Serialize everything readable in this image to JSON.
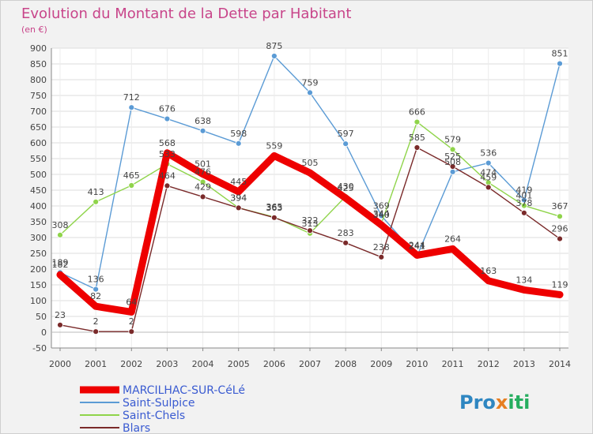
{
  "chart_data": {
    "type": "line",
    "title": "Evolution du Montant de la Dette par Habitant",
    "subtitle": "(en €)",
    "x": [
      "2000",
      "2001",
      "2002",
      "2003",
      "2004",
      "2005",
      "2006",
      "2007",
      "2008",
      "2009",
      "2010",
      "2011",
      "2012",
      "2013",
      "2014"
    ],
    "ylim": [
      -50,
      900
    ],
    "yticks": [
      -50,
      0,
      50,
      100,
      150,
      200,
      250,
      300,
      350,
      400,
      450,
      500,
      550,
      600,
      650,
      700,
      750,
      800,
      850,
      900
    ],
    "grid": true,
    "legend_position": "bottom-left",
    "series": [
      {
        "name": "MARCILHAC-SUR-CéLé",
        "color": "#ee0000",
        "values": [
          182,
          82,
          64,
          568,
          501,
          445,
          559,
          505,
          425,
          340,
          244,
          264,
          163,
          134,
          119
        ],
        "labels": [
          "182",
          "82",
          "64",
          "568",
          "501",
          "445",
          "559",
          "505",
          "425",
          "340",
          "244",
          "264",
          "163",
          "134",
          "119"
        ]
      },
      {
        "name": "Saint-Sulpice",
        "color": "#5b9bd5",
        "values": [
          189,
          136,
          712,
          676,
          638,
          598,
          875,
          759,
          597,
          369,
          241,
          508,
          536,
          419,
          851
        ],
        "labels": [
          "189",
          "136",
          "712",
          "676",
          "638",
          "598",
          "875",
          "759",
          "597",
          "369",
          "241",
          "508",
          "536",
          "419",
          "851"
        ]
      },
      {
        "name": "Saint-Chels",
        "color": "#8fd44a",
        "values": [
          308,
          413,
          465,
          533,
          476,
          394,
          365,
          313,
          430,
          344,
          666,
          579,
          474,
          401,
          367
        ],
        "labels": [
          "308",
          "413",
          "465",
          "533",
          "476",
          "394",
          "365",
          "313",
          "430",
          "344",
          "666",
          "579",
          "474",
          "401",
          "367"
        ]
      },
      {
        "name": "Blars",
        "color": "#7a2a2a",
        "values": [
          23,
          2,
          2,
          464,
          429,
          394,
          363,
          322,
          283,
          238,
          585,
          525,
          459,
          378,
          296
        ],
        "labels": [
          "23",
          "2",
          "2",
          "464",
          "429",
          "394",
          "363",
          "322",
          "283",
          "238",
          "585",
          "525",
          "459",
          "378",
          "296"
        ]
      }
    ]
  },
  "logo": {
    "text": "Proxiti"
  }
}
